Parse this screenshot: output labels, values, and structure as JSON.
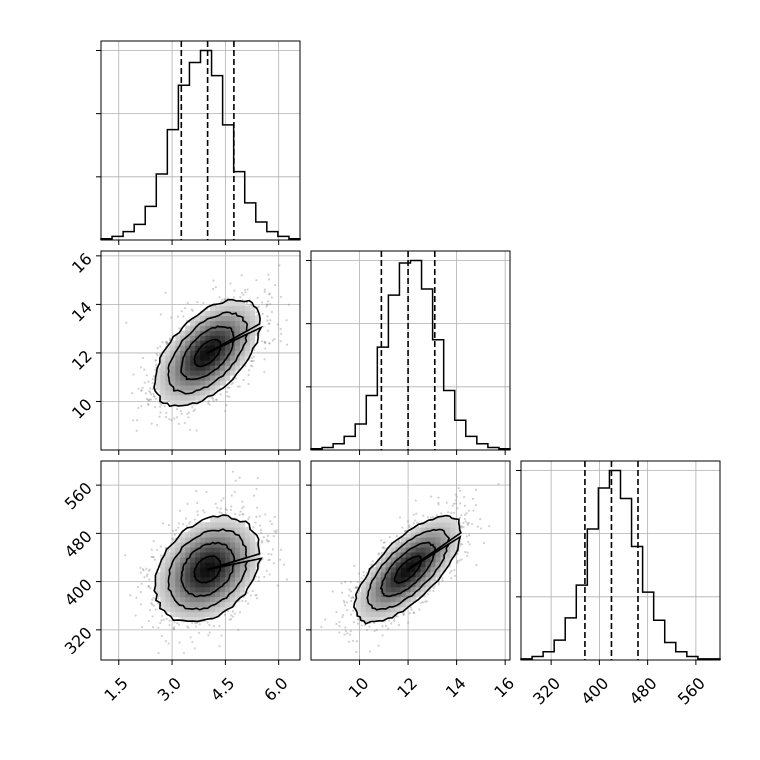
{
  "chart_data": {
    "type": "corner",
    "parameters": [
      {
        "range": [
          1.0,
          6.6
        ],
        "ticks": [
          1.5,
          3.0,
          4.5,
          6.0
        ],
        "tick_labels": [
          "1.5",
          "3.0",
          "4.5",
          "6.0"
        ],
        "quantiles": [
          3.26,
          4.0,
          4.74
        ],
        "hist_counts": [
          1,
          3,
          7,
          13,
          28,
          55,
          92,
          129,
          148,
          158,
          137,
          96,
          57,
          31,
          15,
          7,
          3,
          1
        ]
      },
      {
        "range": [
          8.0,
          16.2
        ],
        "ticks": [
          10,
          12,
          14,
          16
        ],
        "tick_labels": [
          "10",
          "12",
          "14",
          "16"
        ],
        "quantiles": [
          10.9,
          12.0,
          13.1
        ],
        "hist_counts": [
          1,
          2,
          5,
          11,
          21,
          44,
          83,
          125,
          151,
          153,
          130,
          89,
          48,
          24,
          11,
          5,
          2,
          1
        ]
      },
      {
        "range": [
          270,
          600
        ],
        "ticks": [
          320,
          400,
          480,
          560
        ],
        "tick_labels": [
          "320",
          "400",
          "480",
          "560"
        ],
        "quantiles": [
          376,
          420,
          464
        ],
        "hist_counts": [
          1,
          3,
          7,
          17,
          36,
          64,
          112,
          147,
          162,
          138,
          97,
          58,
          34,
          15,
          7,
          3,
          1,
          1
        ]
      }
    ],
    "pairs": [
      {
        "x": 0,
        "y": 1,
        "mean": [
          4.0,
          12.0
        ],
        "sd": [
          0.74,
          1.1
        ],
        "rho": 0.55,
        "seed": 11
      },
      {
        "x": 0,
        "y": 2,
        "mean": [
          4.0,
          420
        ],
        "sd": [
          0.74,
          44
        ],
        "rho": 0.3,
        "seed": 23
      },
      {
        "x": 1,
        "y": 2,
        "mean": [
          12.0,
          420
        ],
        "sd": [
          1.1,
          44
        ],
        "rho": 0.7,
        "seed": 37
      }
    ],
    "contour_levels_sigma": [
      0.5,
      1.0,
      1.5,
      2.0
    ],
    "grid": true
  }
}
